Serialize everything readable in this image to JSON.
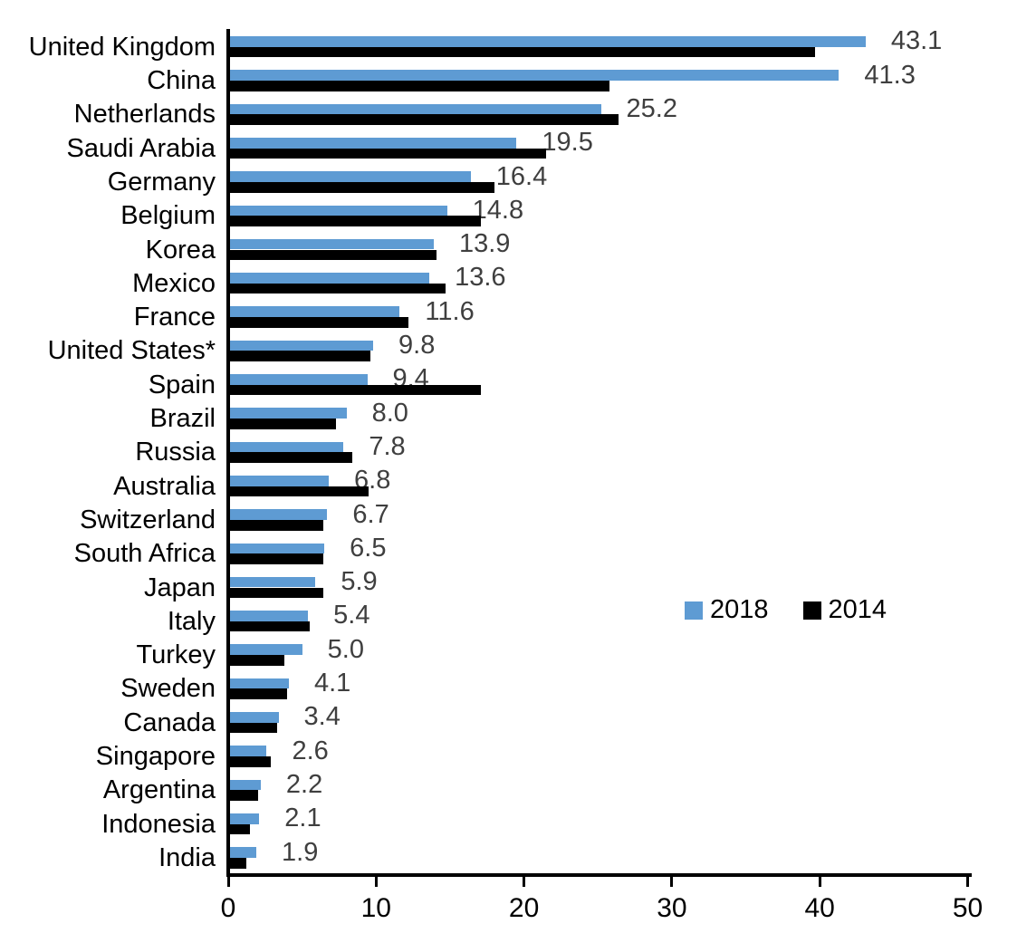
{
  "chart_data": {
    "type": "bar",
    "orientation": "horizontal",
    "title": "",
    "xlabel": "",
    "ylabel": "",
    "xlim": [
      0,
      50
    ],
    "x_ticks": [
      "0",
      "10",
      "20",
      "30",
      "40",
      "50"
    ],
    "grid": false,
    "legend_position": "middle-right",
    "data_labels": {
      "labeled_series": "2018",
      "color": "#3F3F3F",
      "decimals": 1
    },
    "categories": [
      "United Kingdom",
      "China",
      "Netherlands",
      "Saudi Arabia",
      "Germany",
      "Belgium",
      "Korea",
      "Mexico",
      "France",
      "United States*",
      "Spain",
      "Brazil",
      "Russia",
      "Australia",
      "Switzerland",
      "South Africa",
      "Japan",
      "Italy",
      "Turkey",
      "Sweden",
      "Canada",
      "Singapore",
      "Argentina",
      "Indonesia",
      "India"
    ],
    "series": [
      {
        "name": "2018",
        "color": "#5E9BD3",
        "values": [
          43.1,
          41.3,
          25.2,
          19.5,
          16.4,
          14.8,
          13.9,
          13.6,
          11.6,
          9.8,
          9.4,
          8.0,
          7.8,
          6.8,
          6.7,
          6.5,
          5.9,
          5.4,
          5.0,
          4.1,
          3.4,
          2.6,
          2.2,
          2.1,
          1.9
        ]
      },
      {
        "name": "2014",
        "color": "#000000",
        "values": [
          39.7,
          25.8,
          26.4,
          21.5,
          18.0,
          17.1,
          14.1,
          14.7,
          12.2,
          9.6,
          17.1,
          7.3,
          8.4,
          9.5,
          6.4,
          6.4,
          6.4,
          5.5,
          3.8,
          4.0,
          3.3,
          2.9,
          2.0,
          1.5,
          1.2
        ]
      }
    ],
    "shown_value_labels": [
      "43.1",
      "41.3",
      "25.2",
      "19.5",
      "16.4",
      "14.8",
      "13.9",
      "13.6",
      "11.6",
      "9.8",
      "9.4",
      "8.0",
      "7.8",
      "6.8",
      "6.7",
      "6.5",
      "5.9",
      "5.4",
      "5.0",
      "4.1",
      "3.4",
      "2.6",
      "2.2",
      "2.1",
      "1.9"
    ]
  }
}
